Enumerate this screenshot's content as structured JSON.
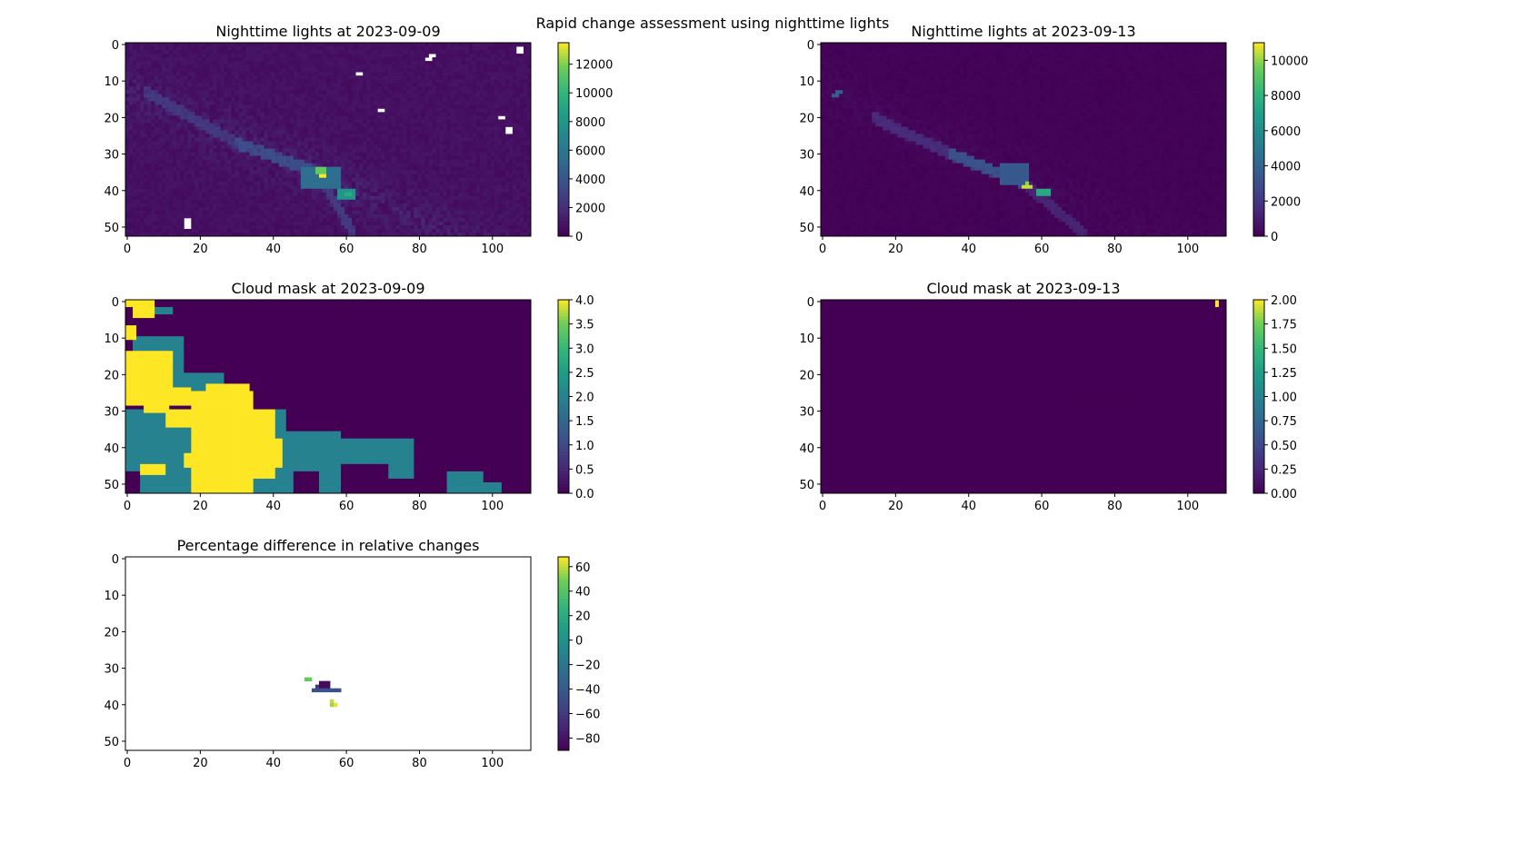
{
  "suptitle": "Rapid change assessment using nighttime lights",
  "chart_data": [
    {
      "type": "heatmap",
      "title": "Nighttime lights at 2023-09-09",
      "shape": [
        53,
        111
      ],
      "xticks": [
        0,
        20,
        40,
        60,
        80,
        100
      ],
      "yticks": [
        0,
        10,
        20,
        30,
        40,
        50
      ],
      "colormap": "viridis",
      "clim": [
        0,
        13500
      ],
      "colorbar_ticks": [
        0,
        2000,
        4000,
        6000,
        8000,
        10000,
        12000
      ],
      "background": 400,
      "noise": 500,
      "streaks": [
        {
          "from": [
            5,
            13
          ],
          "to": [
            30,
            27
          ],
          "value": 2500,
          "width": 2
        },
        {
          "from": [
            30,
            27
          ],
          "to": [
            52,
            35
          ],
          "value": 3500,
          "width": 2
        },
        {
          "from": [
            52,
            35
          ],
          "to": [
            62,
            52
          ],
          "value": 2500,
          "width": 2
        }
      ],
      "regions": [
        [
          48,
          58,
          34,
          39,
          5500
        ],
        [
          52,
          54,
          34,
          35,
          11500
        ],
        [
          53,
          54,
          36,
          36,
          13500
        ],
        [
          58,
          62,
          40,
          42,
          8000
        ],
        [
          60,
          61,
          41,
          41,
          9500
        ]
      ],
      "missing": [
        [
          63,
          64,
          8,
          8
        ],
        [
          82,
          83,
          4,
          4
        ],
        [
          83,
          84,
          3,
          3
        ],
        [
          107,
          108,
          1,
          2
        ],
        [
          69,
          70,
          18,
          18
        ],
        [
          102,
          103,
          20,
          20
        ],
        [
          104,
          105,
          23,
          24
        ],
        [
          16,
          17,
          48,
          50
        ]
      ]
    },
    {
      "type": "heatmap",
      "title": "Nighttime lights at 2023-09-13",
      "shape": [
        53,
        111
      ],
      "xticks": [
        0,
        20,
        40,
        60,
        80,
        100
      ],
      "yticks": [
        0,
        10,
        20,
        30,
        40,
        50
      ],
      "colormap": "viridis",
      "clim": [
        0,
        11000
      ],
      "colorbar_ticks": [
        0,
        2000,
        4000,
        6000,
        8000,
        10000
      ],
      "background": 0,
      "noise": 150,
      "streaks": [
        {
          "from": [
            3,
            14
          ],
          "to": [
            5,
            13
          ],
          "value": 3500,
          "width": 1
        },
        {
          "from": [
            14,
            20
          ],
          "to": [
            35,
            30
          ],
          "value": 1500,
          "width": 2
        },
        {
          "from": [
            35,
            30
          ],
          "to": [
            55,
            38
          ],
          "value": 3000,
          "width": 2
        },
        {
          "from": [
            55,
            38
          ],
          "to": [
            72,
            52
          ],
          "value": 1200,
          "width": 2
        }
      ],
      "regions": [
        [
          49,
          56,
          33,
          38,
          3500
        ],
        [
          55,
          57,
          39,
          39,
          10500
        ],
        [
          56,
          56,
          38,
          38,
          10000
        ],
        [
          59,
          62,
          40,
          41,
          7500
        ]
      ],
      "missing": []
    },
    {
      "type": "heatmap",
      "title": "Cloud mask at 2023-09-09",
      "shape": [
        53,
        111
      ],
      "xticks": [
        0,
        20,
        40,
        60,
        80,
        100
      ],
      "yticks": [
        0,
        10,
        20,
        30,
        40,
        50
      ],
      "colormap": "viridis",
      "clim": [
        0,
        4
      ],
      "colorbar_ticks": [
        0.0,
        0.5,
        1.0,
        1.5,
        2.0,
        2.5,
        3.0,
        3.5,
        4.0
      ],
      "background": 0,
      "noise": 0,
      "streaks": [],
      "regions": [
        [
          0,
          43,
          30,
          52,
          2
        ],
        [
          43,
          58,
          36,
          52,
          2
        ],
        [
          58,
          78,
          38,
          44,
          2
        ],
        [
          72,
          78,
          44,
          48,
          2
        ],
        [
          2,
          15,
          10,
          28,
          2
        ],
        [
          15,
          26,
          20,
          25,
          2
        ],
        [
          6,
          12,
          2,
          3,
          2
        ],
        [
          88,
          97,
          47,
          52,
          2
        ],
        [
          97,
          102,
          50,
          52,
          2
        ],
        [
          0,
          7,
          0,
          1,
          4
        ],
        [
          2,
          7,
          2,
          4,
          4
        ],
        [
          0,
          2,
          7,
          10,
          4
        ],
        [
          0,
          12,
          14,
          24,
          4
        ],
        [
          0,
          17,
          24,
          28,
          4
        ],
        [
          5,
          11,
          28,
          30,
          4
        ],
        [
          11,
          18,
          30,
          34,
          4
        ],
        [
          18,
          34,
          25,
          52,
          4
        ],
        [
          34,
          40,
          30,
          48,
          4
        ],
        [
          40,
          42,
          38,
          45,
          4
        ],
        [
          16,
          20,
          42,
          45,
          4
        ],
        [
          4,
          10,
          45,
          47,
          4
        ],
        [
          22,
          33,
          23,
          25,
          4
        ],
        [
          0,
          3,
          47,
          52,
          0
        ],
        [
          46,
          52,
          47,
          52,
          0
        ]
      ],
      "missing": []
    },
    {
      "type": "heatmap",
      "title": "Cloud mask at 2023-09-13",
      "shape": [
        53,
        111
      ],
      "xticks": [
        0,
        20,
        40,
        60,
        80,
        100
      ],
      "yticks": [
        0,
        10,
        20,
        30,
        40,
        50
      ],
      "colormap": "viridis",
      "clim": [
        0,
        2
      ],
      "colorbar_ticks": [
        0.0,
        0.25,
        0.5,
        0.75,
        1.0,
        1.25,
        1.5,
        1.75,
        2.0
      ],
      "background": 0,
      "noise": 0,
      "streaks": [],
      "regions": [
        [
          108,
          108,
          0,
          1,
          2
        ]
      ],
      "missing": []
    },
    {
      "type": "heatmap",
      "title": "Percentage difference in relative changes",
      "shape": [
        53,
        111
      ],
      "xticks": [
        0,
        20,
        40,
        60,
        80,
        100
      ],
      "yticks": [
        0,
        10,
        20,
        30,
        40,
        50
      ],
      "colormap": "viridis",
      "clim": [
        -90,
        68
      ],
      "colorbar_ticks": [
        -80,
        -60,
        -40,
        -20,
        0,
        20,
        40,
        60
      ],
      "background": null,
      "noise": 0,
      "streaks": [],
      "regions": [
        [
          49,
          50,
          33,
          33,
          45
        ],
        [
          51,
          58,
          36,
          36,
          -45
        ],
        [
          53,
          55,
          34,
          35,
          -85
        ],
        [
          52,
          52,
          35,
          35,
          -60
        ],
        [
          56,
          56,
          39,
          39,
          60
        ],
        [
          57,
          57,
          40,
          40,
          65
        ],
        [
          56,
          56,
          40,
          40,
          55
        ]
      ],
      "missing": []
    }
  ]
}
